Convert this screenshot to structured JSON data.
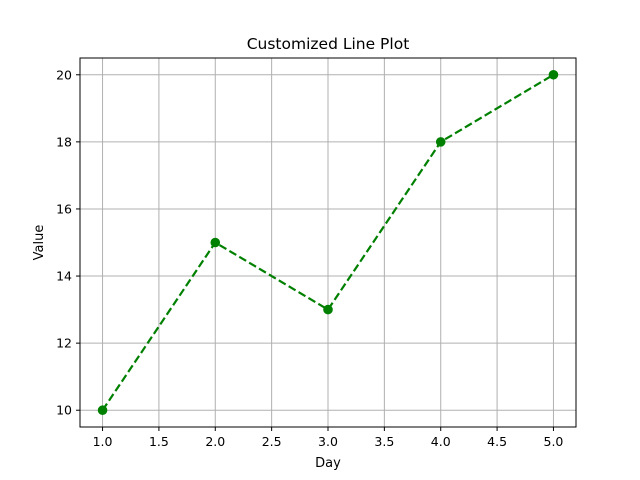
{
  "chart_data": {
    "type": "line",
    "title": "Customized Line Plot",
    "xlabel": "Day",
    "ylabel": "Value",
    "x": [
      1,
      2,
      3,
      4,
      5
    ],
    "series": [
      {
        "values": [
          10,
          15,
          13,
          18,
          20
        ],
        "color": "#008000",
        "linestyle": "dashed",
        "marker": "circle"
      }
    ],
    "xlim": [
      0.8,
      5.2
    ],
    "ylim": [
      9.5,
      20.5
    ],
    "xticks": [
      1.0,
      1.5,
      2.0,
      2.5,
      3.0,
      3.5,
      4.0,
      4.5,
      5.0
    ],
    "xtick_labels": [
      "1.0",
      "1.5",
      "2.0",
      "2.5",
      "3.0",
      "3.5",
      "4.0",
      "4.5",
      "5.0"
    ],
    "yticks": [
      10,
      12,
      14,
      16,
      18,
      20
    ],
    "ytick_labels": [
      "10",
      "12",
      "14",
      "16",
      "18",
      "20"
    ],
    "grid": true,
    "grid_color": "#b0b0b0",
    "legend": false
  }
}
